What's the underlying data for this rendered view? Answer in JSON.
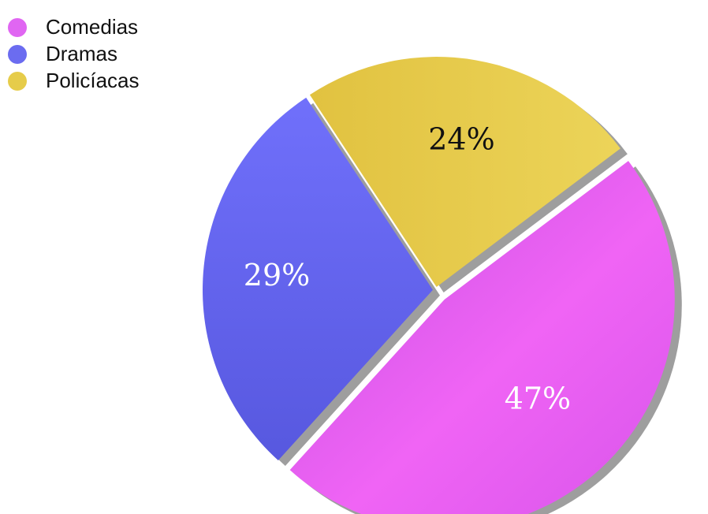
{
  "chart_data": {
    "type": "pie",
    "title": "",
    "legend_position": "top-left",
    "slices": [
      {
        "label": "Comedias",
        "value": 47,
        "display": "47%",
        "color": "#e066f2",
        "label_color": "#ffffff"
      },
      {
        "label": "Dramas",
        "value": 29,
        "display": "29%",
        "color": "#6b6cf0",
        "label_color": "#ffffff"
      },
      {
        "label": "Policíacas",
        "value": 24,
        "display": "24%",
        "color": "#e6cc4a",
        "label_color": "#111111"
      }
    ]
  }
}
